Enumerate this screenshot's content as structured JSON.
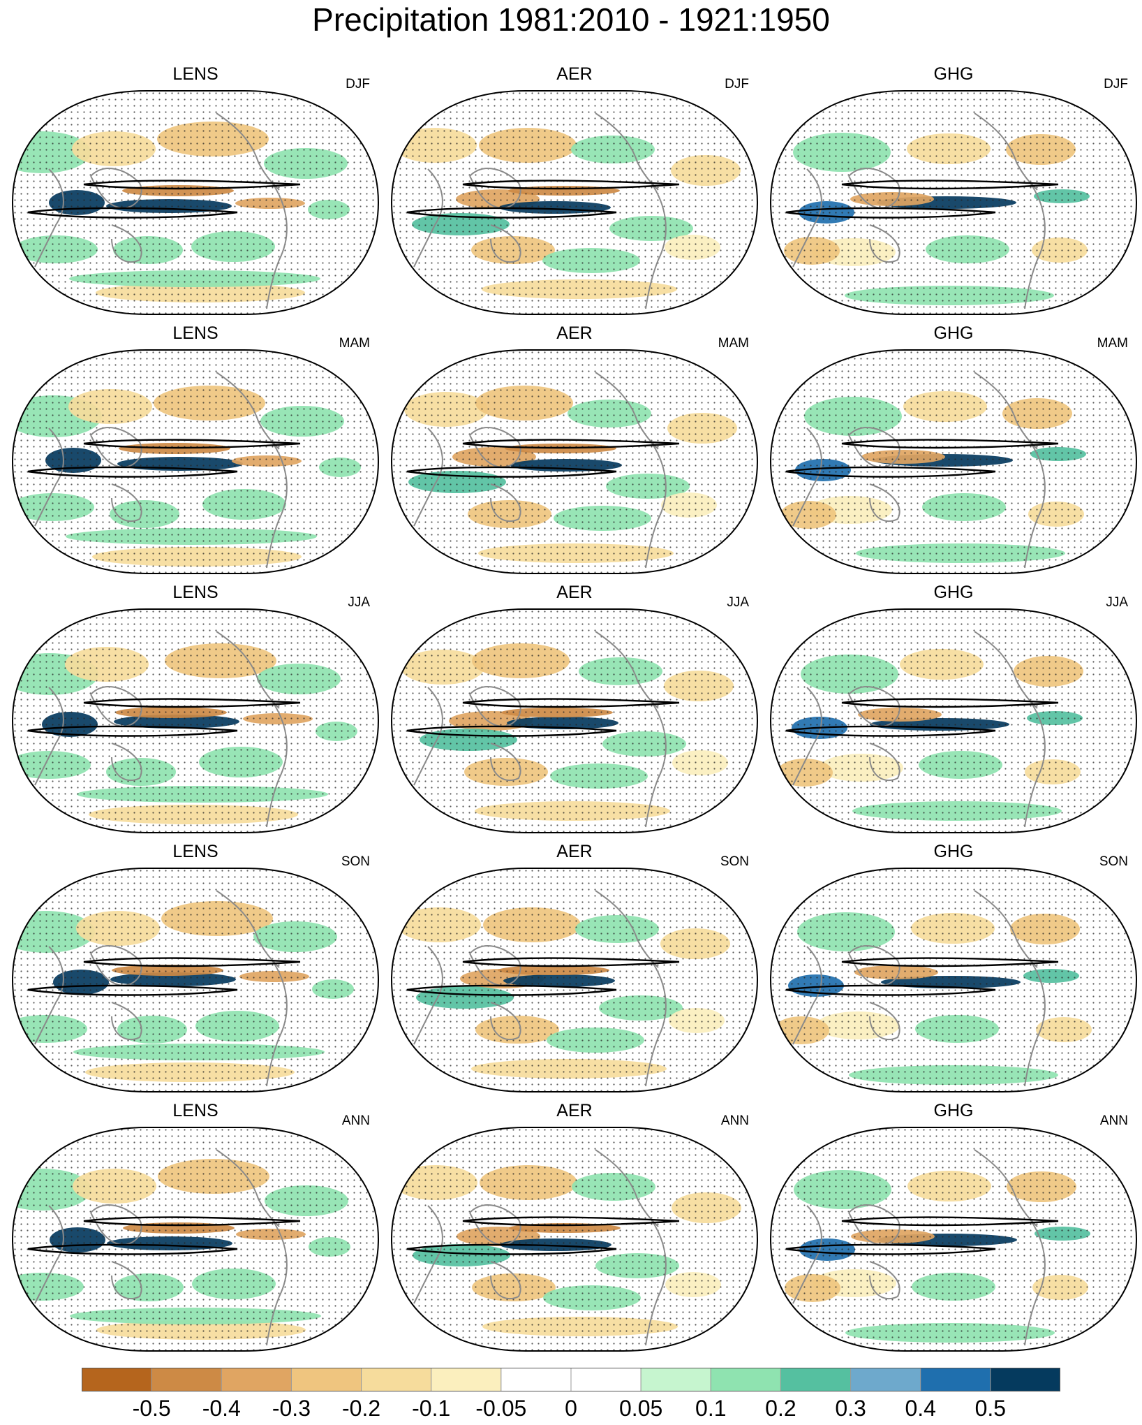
{
  "title": "Precipitation 1981:2010 - 1921:1950",
  "columns": [
    "LENS",
    "AER",
    "GHG"
  ],
  "rows": [
    "DJF",
    "MAM",
    "JJA",
    "SON",
    "ANN"
  ],
  "colorbar": {
    "colors": [
      "#b5651d",
      "#cd8a45",
      "#e0a562",
      "#efc57f",
      "#f6dc9c",
      "#fbefbe",
      "#ffffff",
      "#ffffff",
      "#c6f5cf",
      "#8fe3b0",
      "#55c0a0",
      "#6ea9cc",
      "#1f6fae",
      "#053a5e"
    ],
    "labels": [
      "-0.5",
      "-0.4",
      "-0.3",
      "-0.2",
      "-0.1",
      "-0.05",
      "0",
      "0.05",
      "0.1",
      "0.2",
      "0.3",
      "0.4",
      "0.5"
    ]
  }
}
